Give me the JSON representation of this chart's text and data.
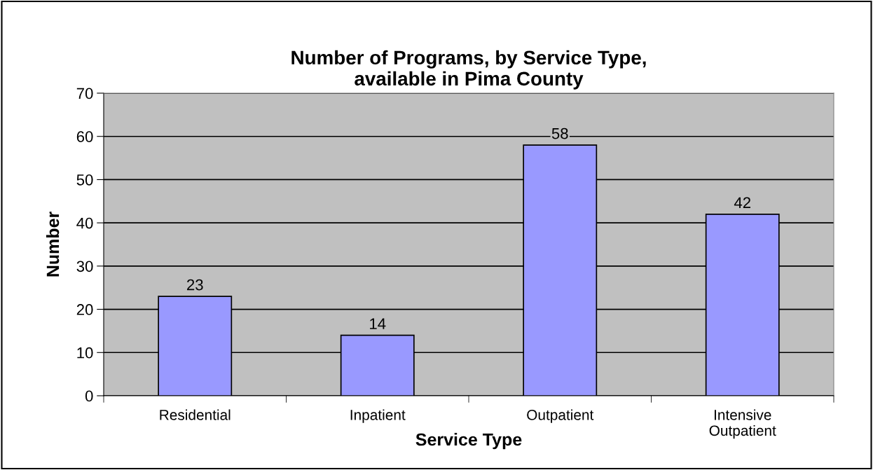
{
  "chart_data": {
    "type": "bar",
    "title": "Number of Programs, by Service Type,\navailable in Pima County",
    "xlabel": "Service Type",
    "ylabel": "Number",
    "categories": [
      "Residential",
      "Inpatient",
      "Outpatient",
      "Intensive\nOutpatient"
    ],
    "values": [
      23,
      14,
      58,
      42
    ],
    "color": "#9999ff",
    "ylim": [
      0,
      70
    ],
    "yticks": [
      0,
      10,
      20,
      30,
      40,
      50,
      60,
      70
    ],
    "grid": "y",
    "data_labels": true
  }
}
